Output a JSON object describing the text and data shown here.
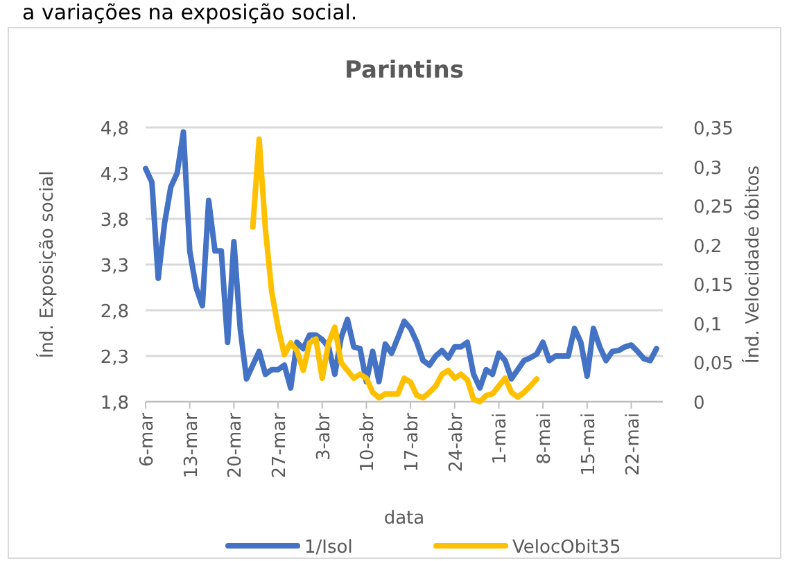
{
  "chart_data": {
    "type": "line",
    "title": "Parintins",
    "xlabel": "data",
    "ylabel": "Índ. Exposição social",
    "y2label": "Índ. Velocidade óbitos",
    "annotations": [
      "a variações na exposição social."
    ],
    "xlim": [
      "--03-06",
      "--05-27"
    ],
    "xticks": [
      {
        "value": "--03-06",
        "label": "6-mar"
      },
      {
        "value": "--03-13",
        "label": "13-mar"
      },
      {
        "value": "--03-20",
        "label": "20-mar"
      },
      {
        "value": "--03-27",
        "label": "27-mar"
      },
      {
        "value": "--04-03",
        "label": "3-abr"
      },
      {
        "value": "--04-10",
        "label": "10-abr"
      },
      {
        "value": "--04-17",
        "label": "17-abr"
      },
      {
        "value": "--04-24",
        "label": "24-abr"
      },
      {
        "value": "--05-01",
        "label": "1-mai"
      },
      {
        "value": "--05-08",
        "label": "8-mai"
      },
      {
        "value": "--05-15",
        "label": "15-mai"
      },
      {
        "value": "--05-22",
        "label": "22-mai"
      }
    ],
    "ylim": [
      1.8,
      4.8
    ],
    "yticks": [
      {
        "value": 1.8,
        "label": "1,8"
      },
      {
        "value": 2.3,
        "label": "2,3"
      },
      {
        "value": 2.8,
        "label": "2,8"
      },
      {
        "value": 3.3,
        "label": "3,3"
      },
      {
        "value": 3.8,
        "label": "3,8"
      },
      {
        "value": 4.3,
        "label": "4,3"
      },
      {
        "value": 4.8,
        "label": "4,8"
      }
    ],
    "y2lim": [
      0,
      0.35
    ],
    "y2ticks": [
      0,
      {
        "value": 0.05,
        "label": "0,05"
      },
      {
        "value": 0.1,
        "label": "0,1"
      },
      {
        "value": 0.15,
        "label": "0,15"
      },
      {
        "value": 0.2,
        "label": "0,2"
      },
      {
        "value": 0.25,
        "label": "0,25"
      },
      {
        "value": 0.3,
        "label": "0,3"
      },
      {
        "value": 0.35,
        "label": "0,35"
      }
    ],
    "grid": "y",
    "legend": "bottom",
    "marker": "none",
    "line_style": "solid",
    "series": [
      {
        "name": "1/Isol",
        "color": "#4472c4",
        "x": [
          "--03-06",
          "--03-07",
          "--03-08",
          "--03-09",
          "--03-10",
          "--03-11",
          "--03-12",
          "--03-13",
          "--03-14",
          "--03-15",
          "--03-16",
          "--03-17",
          "--03-18",
          "--03-19",
          "--03-20",
          "--03-21",
          "--03-22",
          "--03-23",
          "--03-24",
          "--03-25",
          "--03-26",
          "--03-27",
          "--03-28",
          "--03-29",
          "--03-30",
          "--03-31",
          "--04-01",
          "--04-02",
          "--04-03",
          "--04-04",
          "--04-05",
          "--04-06",
          "--04-07",
          "--04-08",
          "--04-09",
          "--04-10",
          "--04-11",
          "--04-12",
          "--04-13",
          "--04-14",
          "--04-15",
          "--04-16",
          "--04-17",
          "--04-18",
          "--04-19",
          "--04-20",
          "--04-21",
          "--04-22",
          "--04-23",
          "--04-24",
          "--04-25",
          "--04-26",
          "--04-27",
          "--04-28",
          "--04-29",
          "--04-30",
          "--05-01",
          "--05-02",
          "--05-03",
          "--05-04",
          "--05-05",
          "--05-06",
          "--05-07",
          "--05-08",
          "--05-09",
          "--05-10",
          "--05-11",
          "--05-12",
          "--05-13",
          "--05-14",
          "--05-15",
          "--05-16",
          "--05-17",
          "--05-18",
          "--05-19",
          "--05-20",
          "--05-21",
          "--05-22",
          "--05-23",
          "--05-24",
          "--05-25",
          "--05-26"
        ],
        "values": [
          4.35,
          4.2,
          3.15,
          3.75,
          4.15,
          4.3,
          4.75,
          3.45,
          3.05,
          2.85,
          4.0,
          3.45,
          3.45,
          2.45,
          3.55,
          2.6,
          2.05,
          2.2,
          2.35,
          2.1,
          2.15,
          2.15,
          2.2,
          1.95,
          2.45,
          2.38,
          2.53,
          2.53,
          2.48,
          2.4,
          2.1,
          2.5,
          2.7,
          2.4,
          2.38,
          2.02,
          2.35,
          2.02,
          2.43,
          2.33,
          2.5,
          2.68,
          2.6,
          2.45,
          2.25,
          2.2,
          2.3,
          2.36,
          2.28,
          2.4,
          2.4,
          2.45,
          2.1,
          1.95,
          2.15,
          2.1,
          2.33,
          2.25,
          2.05,
          2.15,
          2.25,
          2.28,
          2.32,
          2.45,
          2.25,
          2.3,
          2.3,
          2.3,
          2.6,
          2.45,
          2.08,
          2.6,
          2.4,
          2.25,
          2.35,
          2.36,
          2.4,
          2.42,
          2.35,
          2.27,
          2.25,
          2.38
        ]
      },
      {
        "name": "VelocObit35",
        "color": "#ffc000",
        "axis": "y2",
        "x": [
          "--03-23",
          "--03-24",
          "--03-25",
          "--03-26",
          "--03-27",
          "--03-28",
          "--03-29",
          "--03-30",
          "--03-31",
          "--04-01",
          "--04-02",
          "--04-03",
          "--04-04",
          "--04-05",
          "--04-06",
          "--04-07",
          "--04-08",
          "--04-09",
          "--04-10",
          "--04-11",
          "--04-12",
          "--04-13",
          "--04-14",
          "--04-15",
          "--04-16",
          "--04-17",
          "--04-18",
          "--04-19",
          "--04-20",
          "--04-21",
          "--04-22",
          "--04-23",
          "--04-24",
          "--04-25",
          "--04-26",
          "--04-27",
          "--04-28",
          "--04-29",
          "--04-30",
          "--05-01",
          "--05-02",
          "--05-03",
          "--05-04",
          "--05-05",
          "--05-06",
          "--05-07"
        ],
        "values": [
          0.223,
          0.335,
          0.22,
          0.14,
          0.095,
          0.06,
          0.075,
          0.065,
          0.04,
          0.075,
          0.08,
          0.03,
          0.075,
          0.095,
          0.05,
          0.04,
          0.03,
          0.035,
          0.03,
          0.012,
          0.005,
          0.01,
          0.01,
          0.01,
          0.03,
          0.025,
          0.008,
          0.005,
          0.012,
          0.02,
          0.035,
          0.04,
          0.03,
          0.035,
          0.028,
          0.003,
          0,
          0.008,
          0.01,
          0.02,
          0.03,
          0.012,
          0.006,
          0.012,
          0.02,
          0.029
        ]
      }
    ]
  }
}
